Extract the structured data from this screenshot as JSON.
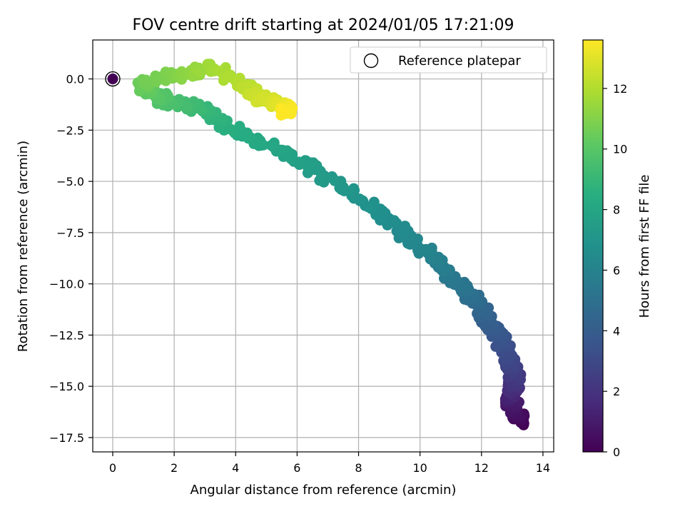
{
  "chart_data": {
    "type": "scatter",
    "title": "FOV centre drift starting at 2024/01/05 17:21:09",
    "xlabel": "Angular distance from reference (arcmin)",
    "ylabel": "Rotation from reference (arcmin)",
    "xlim": [
      -0.65,
      14.35
    ],
    "ylim": [
      -18.2,
      1.9
    ],
    "xticks": [
      0,
      2,
      4,
      6,
      8,
      10,
      12,
      14
    ],
    "xtick_labels": [
      "0",
      "2",
      "4",
      "6",
      "8",
      "10",
      "12",
      "14"
    ],
    "yticks": [
      0.0,
      -2.5,
      -5.0,
      -7.5,
      -10.0,
      -12.5,
      -15.0,
      -17.5
    ],
    "ytick_labels": [
      "0.0",
      "−2.5",
      "−5.0",
      "−7.5",
      "−10.0",
      "−12.5",
      "−15.0",
      "−17.5"
    ],
    "grid": true,
    "colormap": "viridis",
    "colorbar": {
      "label": "Hours from first FF file",
      "range": [
        0,
        13.6
      ],
      "ticks": [
        0,
        2,
        4,
        6,
        8,
        10,
        12
      ],
      "tick_labels": [
        "0",
        "2",
        "4",
        "6",
        "8",
        "10",
        "12"
      ]
    },
    "legend": {
      "position": "top-right",
      "entries": [
        {
          "label": "Reference platepar",
          "marker": "open-circle"
        }
      ]
    },
    "reference_point": {
      "x": 0,
      "y": 0
    },
    "curve_anchors": [
      {
        "t": 0.0,
        "x": 13.3,
        "y": -16.8
      },
      {
        "t": 0.8,
        "x": 13.0,
        "y": -16.0
      },
      {
        "t": 1.5,
        "x": 13.0,
        "y": -15.3
      },
      {
        "t": 2.2,
        "x": 13.1,
        "y": -14.7
      },
      {
        "t": 3.0,
        "x": 12.9,
        "y": -13.6
      },
      {
        "t": 3.7,
        "x": 12.5,
        "y": -12.4
      },
      {
        "t": 4.5,
        "x": 12.0,
        "y": -11.2
      },
      {
        "t": 5.2,
        "x": 11.4,
        "y": -10.2
      },
      {
        "t": 6.0,
        "x": 10.4,
        "y": -8.7
      },
      {
        "t": 6.5,
        "x": 9.3,
        "y": -7.4
      },
      {
        "t": 7.0,
        "x": 8.0,
        "y": -5.8
      },
      {
        "t": 7.5,
        "x": 6.5,
        "y": -4.4
      },
      {
        "t": 7.9,
        "x": 5.7,
        "y": -3.6
      },
      {
        "t": 8.3,
        "x": 4.5,
        "y": -2.9
      },
      {
        "t": 8.6,
        "x": 3.7,
        "y": -2.2
      },
      {
        "t": 8.9,
        "x": 3.2,
        "y": -1.6
      },
      {
        "t": 9.3,
        "x": 2.5,
        "y": -1.3
      },
      {
        "t": 9.7,
        "x": 1.8,
        "y": -1.1
      },
      {
        "t": 10.2,
        "x": 1.1,
        "y": -0.6
      },
      {
        "t": 10.6,
        "x": 1.0,
        "y": -0.2
      },
      {
        "t": 11.0,
        "x": 2.0,
        "y": 0.2
      },
      {
        "t": 11.3,
        "x": 2.6,
        "y": 0.2
      },
      {
        "t": 11.7,
        "x": 3.2,
        "y": 0.6
      },
      {
        "t": 12.2,
        "x": 4.3,
        "y": -0.4
      },
      {
        "t": 12.6,
        "x": 4.8,
        "y": -0.9
      },
      {
        "t": 13.0,
        "x": 5.5,
        "y": -1.3
      },
      {
        "t": 13.6,
        "x": 5.7,
        "y": -1.6
      }
    ],
    "n_points": 620
  }
}
